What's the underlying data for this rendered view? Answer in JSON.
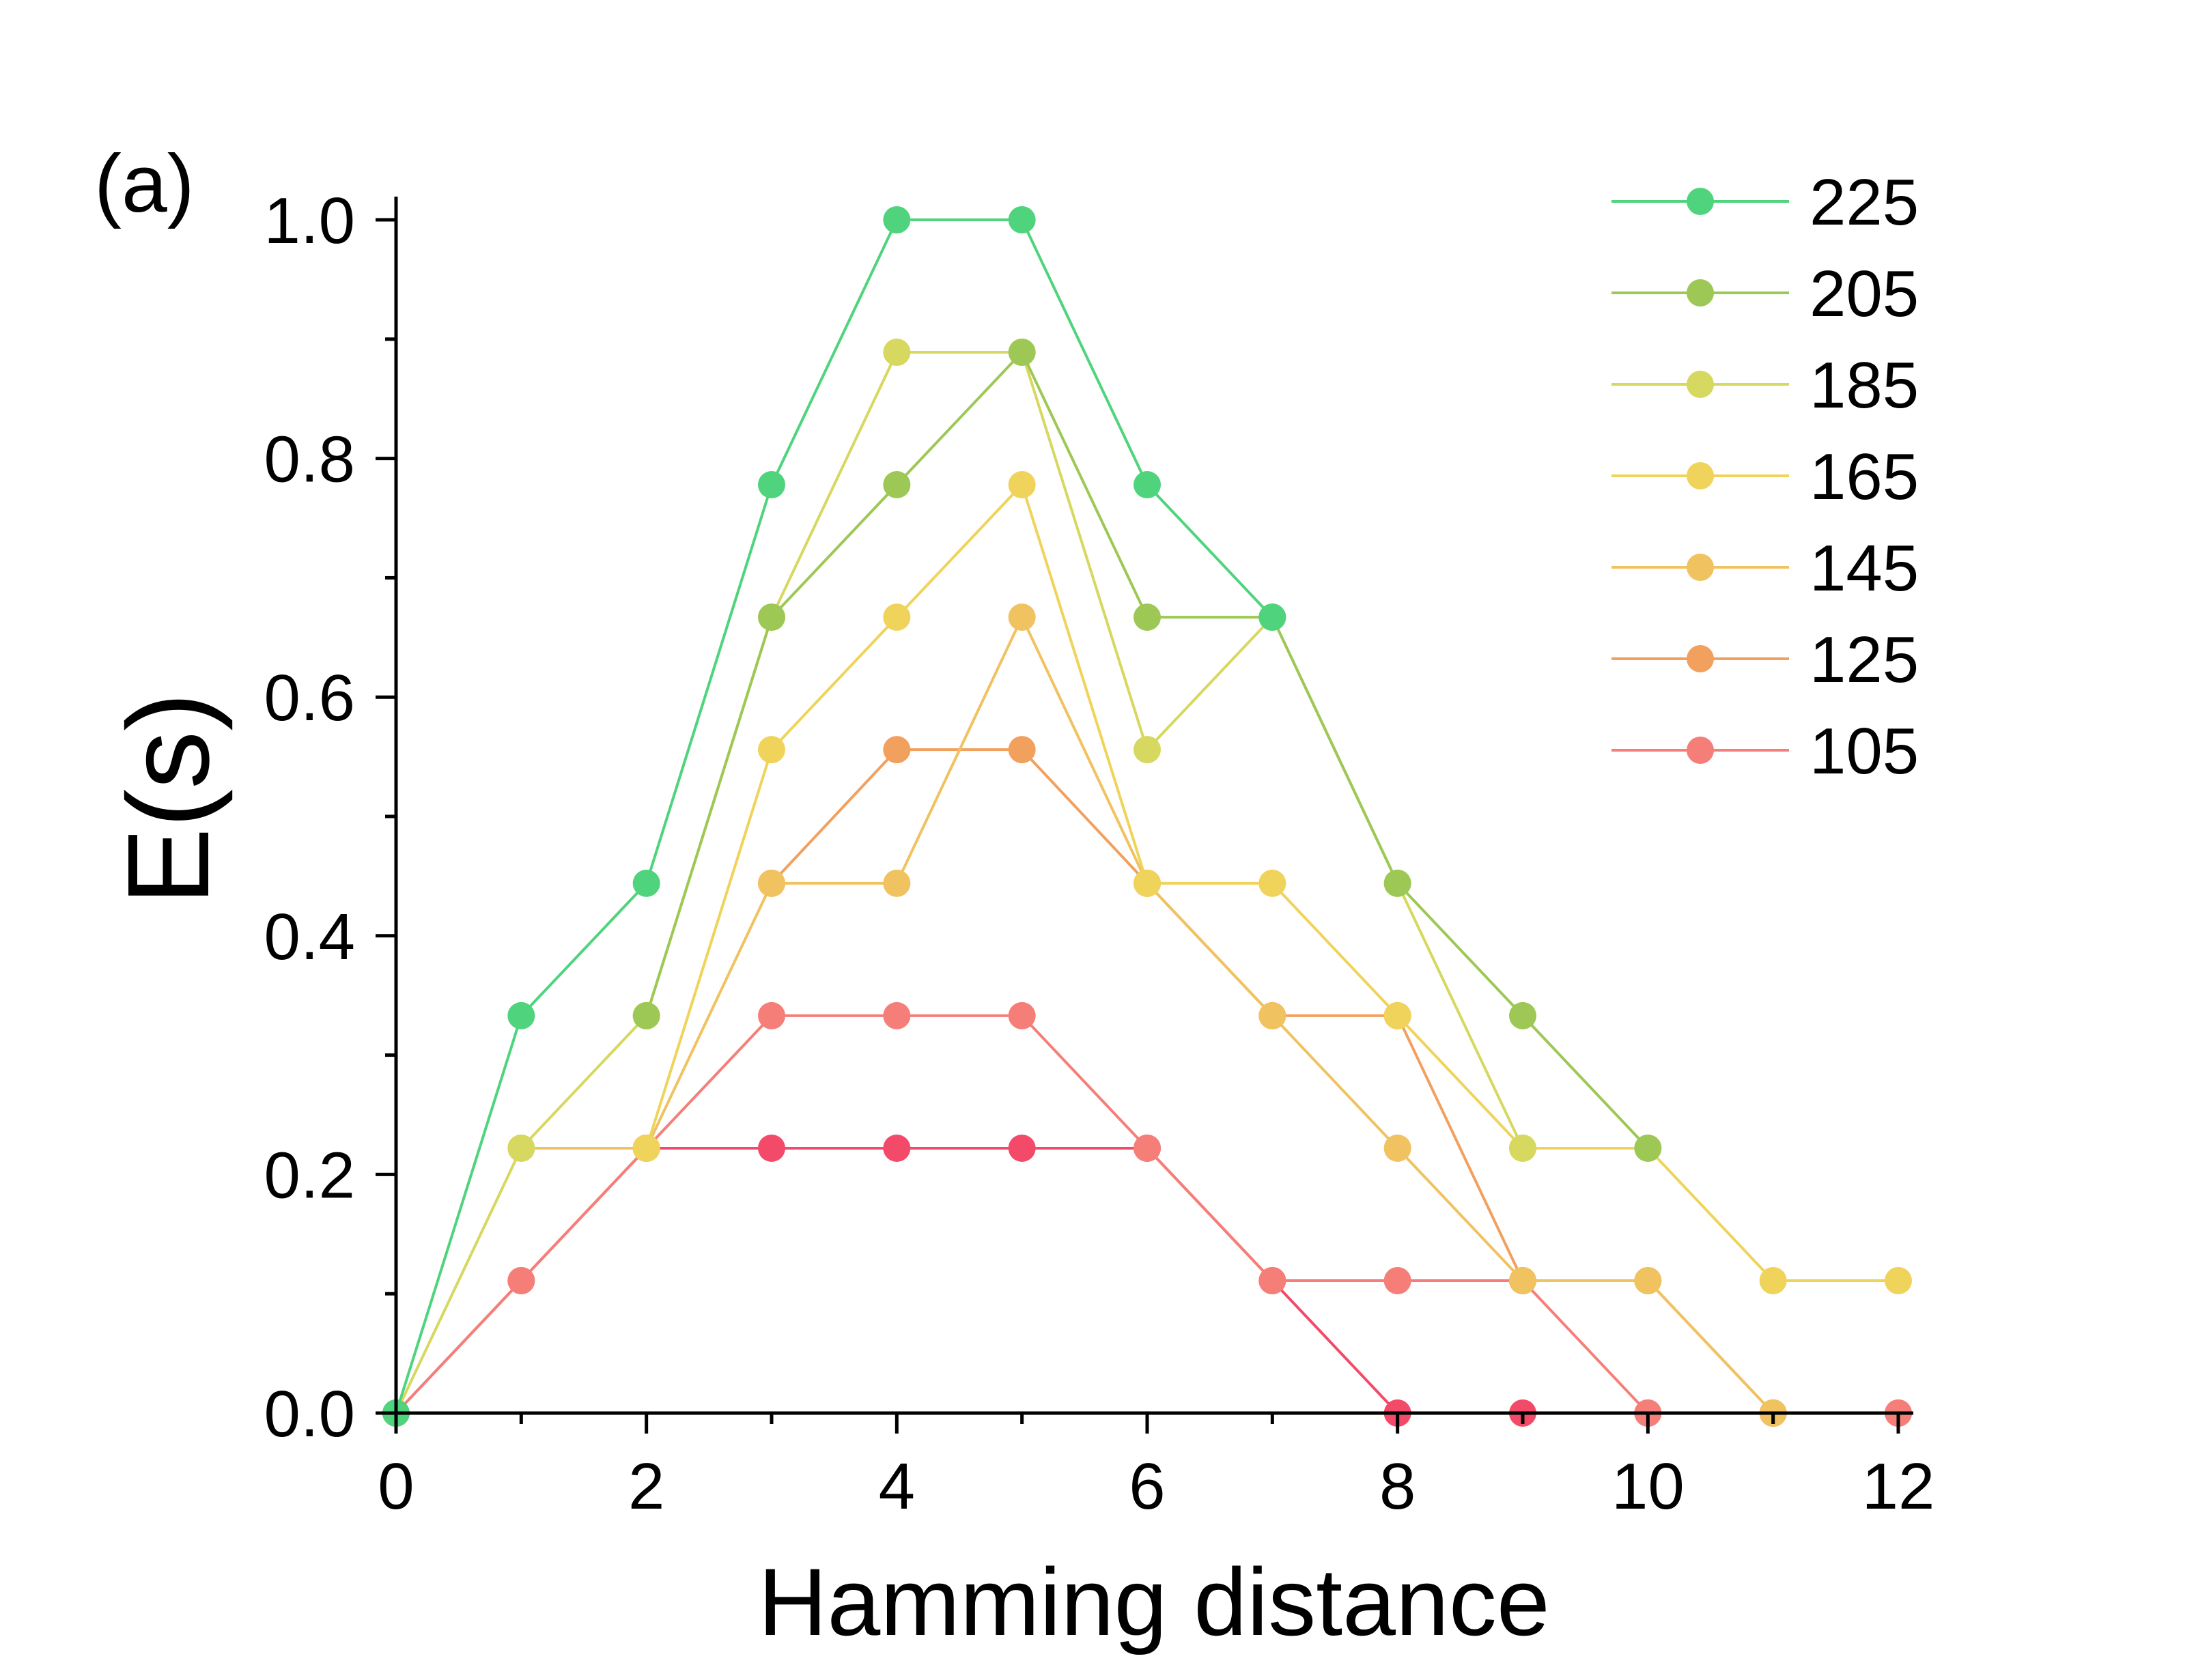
{
  "chart_data": {
    "type": "line",
    "panel_label": "(a)",
    "xlabel": "Hamming distance",
    "ylabel": "E(s)",
    "xlim": [
      0,
      12
    ],
    "ylim": [
      0,
      1.0
    ],
    "xticks": [
      0,
      2,
      4,
      6,
      8,
      10,
      12
    ],
    "xtick_labels": [
      "0",
      "2",
      "4",
      "6",
      "8",
      "10",
      "12"
    ],
    "yticks": [
      0,
      0.2,
      0.4,
      0.6,
      0.8,
      1.0
    ],
    "ytick_labels": [
      "0.0",
      "0.2",
      "0.4",
      "0.6",
      "0.8",
      "1.0"
    ],
    "grid": false,
    "legend_position": "top-right",
    "series": [
      {
        "name": "225",
        "color": "#4fd47d",
        "x": [
          0,
          1,
          2,
          3,
          4,
          5,
          6,
          7
        ],
        "y": [
          0,
          0.333,
          0.444,
          0.778,
          1.0,
          1.0,
          0.778,
          0.667
        ]
      },
      {
        "name": "205",
        "color": "#9dc855",
        "x": [
          2,
          3,
          4,
          5,
          6,
          7,
          8,
          9,
          10
        ],
        "y": [
          0.333,
          0.667,
          0.778,
          0.889,
          0.667,
          0.667,
          0.444,
          0.333,
          0.222
        ]
      },
      {
        "name": "185",
        "color": "#d6d85f",
        "x": [
          0,
          1,
          2,
          3,
          4,
          5,
          6,
          7,
          8,
          9
        ],
        "y": [
          0,
          0.222,
          0.333,
          0.667,
          0.889,
          0.889,
          0.556,
          0.667,
          0.444,
          0.222
        ]
      },
      {
        "name": "165",
        "color": "#f0d35a",
        "x": [
          2,
          3,
          4,
          5,
          6,
          7,
          8,
          9,
          10,
          11,
          12
        ],
        "y": [
          0.222,
          0.556,
          0.667,
          0.778,
          0.444,
          0.444,
          0.333,
          0.222,
          0.222,
          0.111,
          0.111
        ]
      },
      {
        "name": "145",
        "color": "#f0c260",
        "x": [
          1,
          2,
          3,
          4,
          5,
          6,
          7,
          8,
          9,
          10,
          11
        ],
        "y": [
          0.222,
          0.222,
          0.444,
          0.444,
          0.667,
          0.444,
          0.333,
          0.222,
          0.111,
          0.111,
          0
        ],
        "note_y": ""
      },
      {
        "name": "125",
        "color": "#f2a05e",
        "x": [
          3,
          4,
          5,
          6,
          7,
          8,
          9,
          10,
          11
        ],
        "y": [
          0.444,
          0.556,
          0.556,
          0.444,
          0.333,
          0.333,
          0.111,
          0.111,
          0
        ]
      },
      {
        "name": "105",
        "color": "#f57f78",
        "x": [
          0,
          1,
          2,
          3,
          4,
          5,
          6,
          7,
          8,
          9,
          10,
          11,
          12
        ],
        "y": [
          0,
          0.111,
          0.222,
          0.333,
          0.333,
          0.333,
          0.222,
          0.111,
          0.111,
          0.111,
          0,
          0,
          0
        ]
      },
      {
        "name": "",
        "color": "#f24a68",
        "x": [
          0,
          1,
          2,
          3,
          4,
          5,
          6,
          7,
          8,
          9,
          10,
          11,
          12
        ],
        "y": [
          0,
          0.111,
          0.222,
          0.222,
          0.222,
          0.222,
          0.222,
          0.111,
          0,
          0,
          0,
          0,
          0
        ]
      }
    ],
    "legend": [
      {
        "label": "225",
        "color": "#4fd47d"
      },
      {
        "label": "205",
        "color": "#9dc855"
      },
      {
        "label": "185",
        "color": "#d6d85f"
      },
      {
        "label": "165",
        "color": "#f0d35a"
      },
      {
        "label": "145",
        "color": "#f0c260"
      },
      {
        "label": "125",
        "color": "#f2a05e"
      },
      {
        "label": "105",
        "color": "#f57f78"
      }
    ]
  }
}
